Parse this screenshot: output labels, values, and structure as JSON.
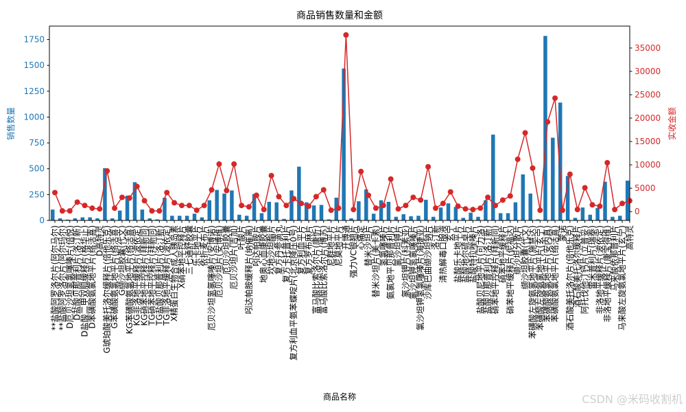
{
  "chart_data": {
    "type": "bar",
    "title": "商品销售数量和金额",
    "xlabel": "商品名称",
    "ylabel": "销售数量",
    "y2label": "实收金额",
    "categories": [
      "**盐酸阿罗洛尔片(阿尔马尔)",
      "**盐酸阿罗洛尔片(阿尔玛尔)",
      "D厄贝沙坦氢氯噻嗪片(倍悦)",
      "D盐酸贝那普利片(洛汀新)",
      "D盐酸二甲双胍缓释片(格华止)",
      "D苯磺酸氨氯地平片(络活喜)",
      "D高特灵",
      "G琥珀酸美托洛尔缓释片(倍他乐克)",
      "G苯磺酸氨氯地平片(络活喜)",
      "G缬沙坦胶囊(代文)",
      "KG苯磺酸氨氯地平片(络活喜)",
      "KG非洛地平缓释片(波依定)",
      "KG硝苯地平控释片(拜新同)",
      "TG硝苯地平控释片(拜新同)",
      "TG盐酸贝那普利片(洛汀新)",
      "TG非洛地平缓释片(波依定)",
      "X精蛋白生物合成人胰岛素",
      "X硝苯地平控释片",
      "三七通舒胶囊",
      "乐卡地平片",
      "依折麦布片",
      "厄贝沙坦氢氯噻嗪片(安博诺)",
      "厄贝沙坦片(安博维)",
      "厄贝沙坦胶囊",
      "厄贝沙坦片(吉加)",
      "叶酸片",
      "吲达帕胺缓释片(纳催离)",
      "吲达帕胺片",
      "地奥心血康胶囊",
      "坎地沙坦酯片",
      "复方丹参滴丸",
      "复方卡托普利片",
      "复方利血平氨苯蝶啶片(北京降压0号)",
      "复方利血平片",
      "复方罗布麻片",
      "富马酸比索洛尔片(康忻)",
      "富马酸比索洛尔片(博苏)",
      "尼群地平片",
      "尼莫地平片",
      "开博通",
      "强力VC银翘片",
      "心痛定",
      "替米沙坦片",
      "替米沙坦片(美卡素)",
      "氢氯噻嗪片",
      "氨氯地平贝那普利片",
      "氯沙坦钾片",
      "氯沙坦钾片(科素亚)",
      "氯沙坦钾氢氯噻嗪片",
      "氯沙坦钾氢氯噻嗪片(海捷亚)",
      "沙库巴曲缬沙坦钠片",
      "洛汀新",
      "清热解毒口服液",
      "玄宁",
      "盐酸乐卡地平片",
      "盐酸地尔硫卓片",
      "盐酸特拉唑嗪片",
      "盐酸贝尼地平片(可力洛)",
      "盐酸贝那普利片(洛汀新)",
      "硝苯地平控释片(拜新同)",
      "硝苯地平缓释片",
      "硝苯地平缓释片(伲福达)",
      "缬沙坦分散片",
      "缬沙坦胶囊(代文)",
      "苯磺酸左旋氨氯地平片(施慧达)",
      "苯磺酸左旋氨氯地平片(玄宁)",
      "苯磺酸氨氯地平片(安内真)",
      "苯磺酸氨氯地平片(络活喜)",
      "蒙诺",
      "酒石酸美托洛尔片(倍他乐克)",
      "酒石酸美托洛尔缓释片",
      "阿托伐他汀钙片(立普妥)",
      "雷米普利片(瑞泰)",
      "非洛地平缓释片(波依定)",
      "非洛地平缓释片(康宝得维)",
      "马来酸依那普利片",
      "马来酸左旋氨氯地平片(玄宁)",
      "高特灵"
    ],
    "series": [
      {
        "name": "销售数量",
        "type": "bar",
        "axis": "left",
        "values": [
          105,
          20,
          8,
          20,
          30,
          30,
          20,
          505,
          20,
          95,
          240,
          370,
          105,
          20,
          10,
          220,
          45,
          45,
          45,
          65,
          30,
          195,
          295,
          260,
          290,
          55,
          45,
          255,
          70,
          180,
          175,
          15,
          290,
          520,
          175,
          145,
          150,
          10,
          220,
          1470,
          20,
          185,
          300,
          65,
          195,
          180,
          35,
          60,
          40,
          45,
          200,
          35,
          125,
          165,
          130,
          25,
          75,
          35,
          195,
          830,
          70,
          70,
          175,
          445,
          260,
          10,
          1785,
          800,
          1140,
          430,
          25,
          125,
          55,
          120,
          375,
          35,
          45,
          385
        ]
      },
      {
        "name": "实收金额",
        "type": "line",
        "axis": "right",
        "values": [
          4070,
          150,
          150,
          2030,
          1310,
          730,
          580,
          8700,
          730,
          3050,
          2900,
          5380,
          2330,
          150,
          150,
          4070,
          1890,
          1310,
          1310,
          290,
          1310,
          4650,
          10170,
          4500,
          10170,
          1310,
          1020,
          3490,
          440,
          7700,
          3200,
          1310,
          2760,
          1740,
          1160,
          3200,
          4650,
          290,
          730,
          37800,
          440,
          8570,
          3490,
          730,
          1310,
          6970,
          580,
          1310,
          3050,
          2470,
          9590,
          730,
          1740,
          4210,
          1160,
          580,
          440,
          730,
          3050,
          1310,
          2470,
          3340,
          11190,
          16850,
          9300,
          290,
          19180,
          24270,
          290,
          7990,
          440,
          5090,
          1450,
          1160,
          10460,
          440,
          1740,
          2330
        ]
      }
    ],
    "ylim": [
      0,
      1880
    ],
    "y2lim": [
      -1890,
      39690
    ],
    "yticks": [
      0,
      250,
      500,
      750,
      1000,
      1250,
      1500,
      1750
    ],
    "y2ticks": [
      0,
      5000,
      10000,
      15000,
      20000,
      25000,
      30000,
      35000
    ],
    "grid": false,
    "colors": {
      "bar": "#1f77b4",
      "line": "#d62728",
      "axis_left": "#1f77b4",
      "axis_right": "#d62728"
    }
  },
  "watermark": "CSDN @米码收割机"
}
